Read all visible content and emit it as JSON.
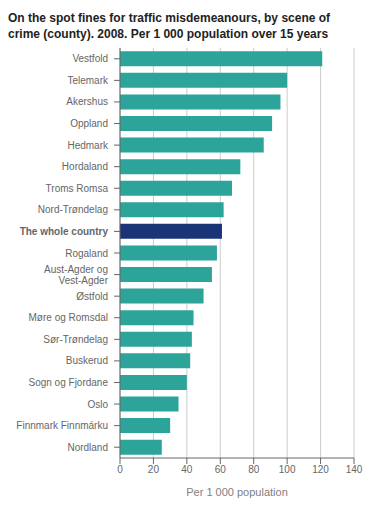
{
  "chart_data": {
    "type": "bar",
    "orientation": "horizontal",
    "title": "On the spot fines for traffic misdemeanours, by scene of\ncrime (county). 2008. Per 1 000 population over 15 years",
    "categories": [
      "Nordland",
      "Finnmark Finnmárku",
      "Oslo",
      "Sogn og Fjordane",
      "Buskerud",
      "Sør-Trøndelag",
      "Møre og Romsdal",
      "Østfold",
      "Aust-Agder og\nVest-Agder",
      "Rogaland",
      "The whole country",
      "Nord-Trøndelag",
      "Troms Romsa",
      "Hordaland",
      "Hedmark",
      "Oppland",
      "Akershus",
      "Telemark",
      "Vestfold"
    ],
    "values": [
      25,
      30,
      35,
      40,
      42,
      43,
      44,
      50,
      55,
      58,
      61,
      62,
      67,
      72,
      86,
      91,
      96,
      100,
      121
    ],
    "colors": [
      "#2ca49a",
      "#2ca49a",
      "#2ca49a",
      "#2ca49a",
      "#2ca49a",
      "#2ca49a",
      "#2ca49a",
      "#2ca49a",
      "#2ca49a",
      "#2ca49a",
      "#1a3577",
      "#2ca49a",
      "#2ca49a",
      "#2ca49a",
      "#2ca49a",
      "#2ca49a",
      "#2ca49a",
      "#2ca49a",
      "#2ca49a"
    ],
    "xlabel": "Per 1 000 population",
    "xlim": [
      0,
      140
    ],
    "xticks": [
      0,
      20,
      40,
      60,
      80,
      100,
      120,
      140
    ],
    "grid": true
  }
}
